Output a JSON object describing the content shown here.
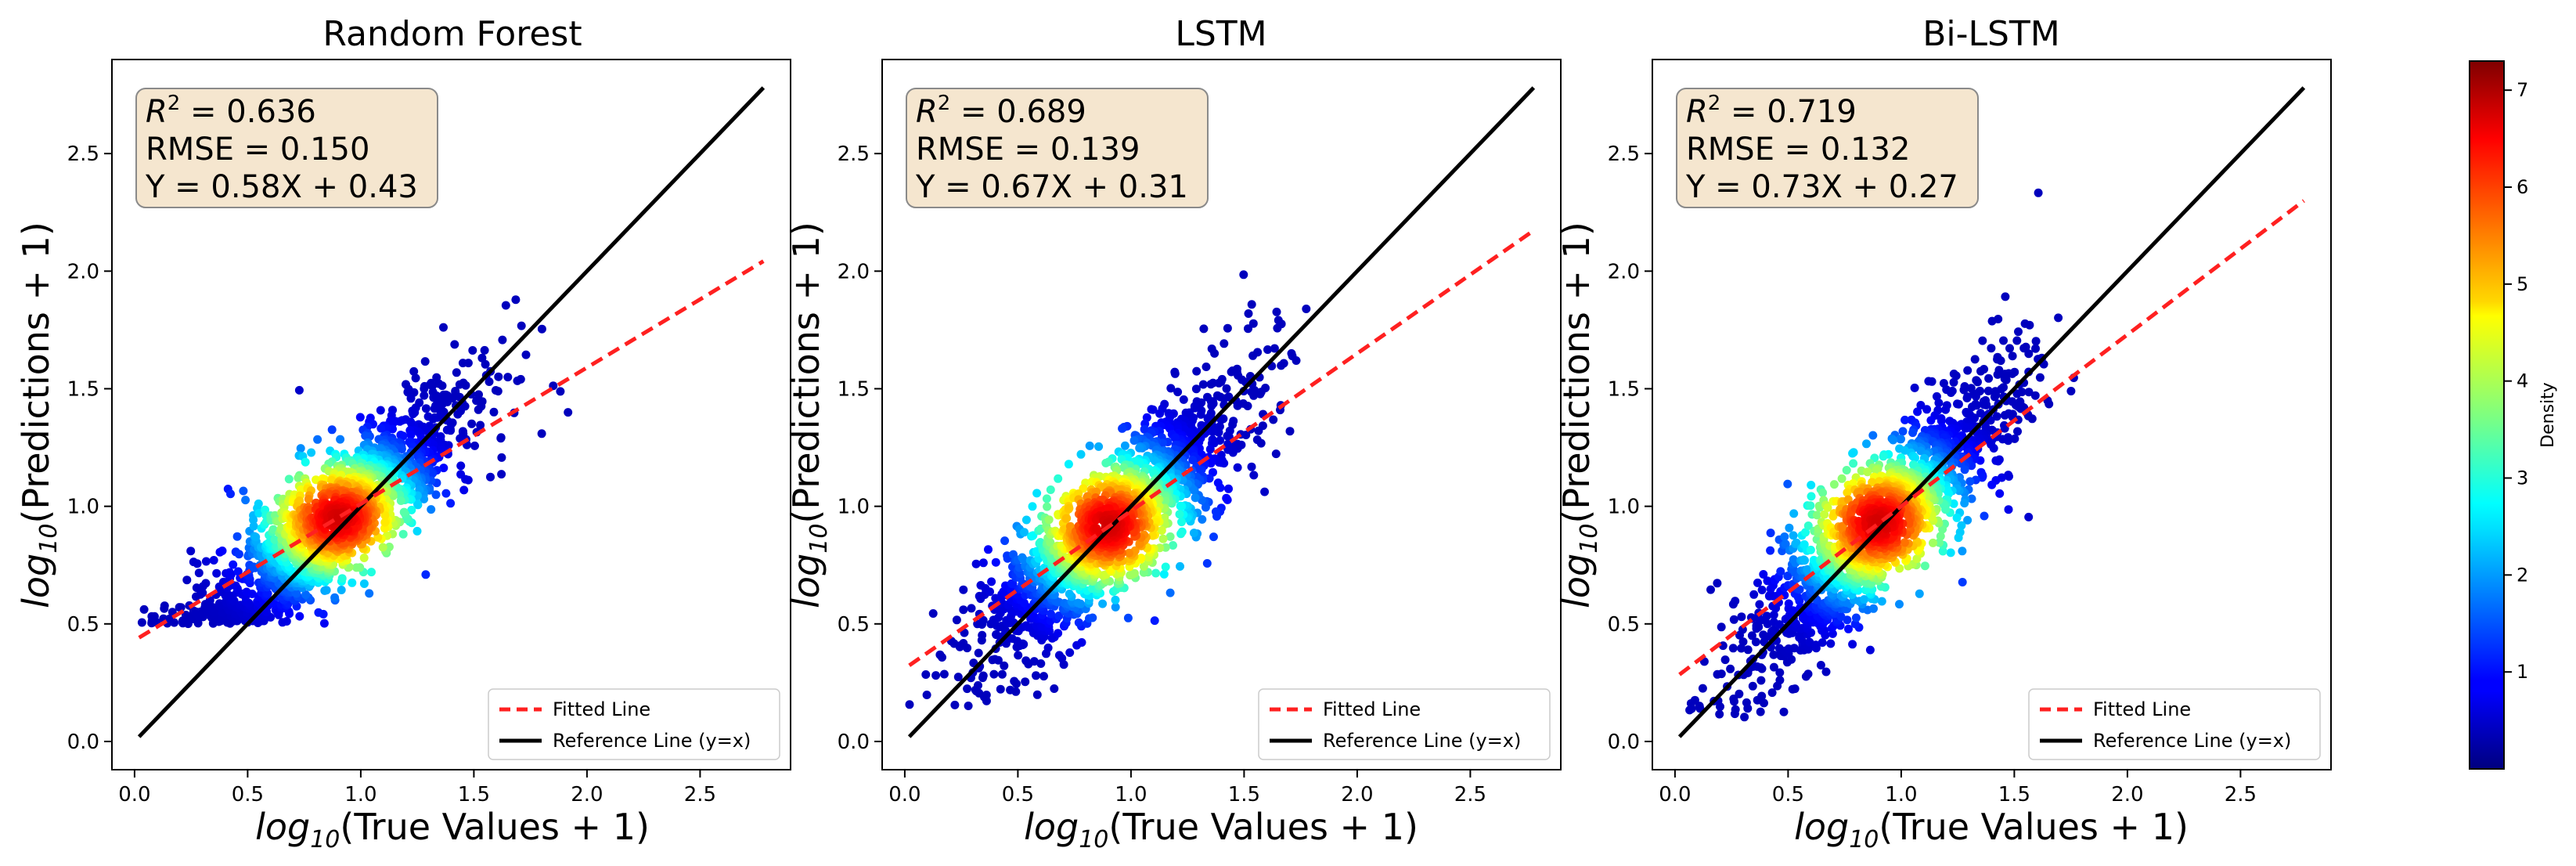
{
  "chart_data": [
    {
      "type": "scatter",
      "title": "Random Forest",
      "xlabel": {
        "pre": "log",
        "sub": "10",
        "post": "(True Values + 1)"
      },
      "ylabel": {
        "pre": "log",
        "sub": "10",
        "post": "(Predictions + 1)"
      },
      "xlim": [
        -0.1,
        2.9
      ],
      "ylim": [
        -0.12,
        2.9
      ],
      "xticks": [
        "0.0",
        "0.5",
        "1.0",
        "1.5",
        "2.0",
        "2.5"
      ],
      "yticks": [
        "0.0",
        "0.5",
        "1.0",
        "1.5",
        "2.0",
        "2.5"
      ],
      "stats": {
        "r2_label": "R",
        "r2_exp": "2",
        "r2_value": " = 0.636",
        "rmse": "RMSE = 0.150",
        "equation": "Y = 0.58X + 0.43"
      },
      "fit": {
        "slope": 0.58,
        "intercept": 0.43,
        "x_range": [
          0.02,
          2.78
        ]
      },
      "reference": {
        "x_range": [
          0.02,
          2.78
        ]
      },
      "cloud": {
        "center": [
          0.9,
          0.95
        ],
        "spread_x": 0.3,
        "spread_y": 0.22,
        "y_floor": 0.5
      }
    },
    {
      "type": "scatter",
      "title": "LSTM",
      "xlabel": {
        "pre": "log",
        "sub": "10",
        "post": "(True Values + 1)"
      },
      "ylabel": {
        "pre": "log",
        "sub": "10",
        "post": "(Predictions + 1)"
      },
      "xlim": [
        -0.1,
        2.9
      ],
      "ylim": [
        -0.12,
        2.9
      ],
      "xticks": [
        "0.0",
        "0.5",
        "1.0",
        "1.5",
        "2.0",
        "2.5"
      ],
      "yticks": [
        "0.0",
        "0.5",
        "1.0",
        "1.5",
        "2.0",
        "2.5"
      ],
      "stats": {
        "r2_label": "R",
        "r2_exp": "2",
        "r2_value": " = 0.689",
        "rmse": "RMSE = 0.139",
        "equation": "Y = 0.67X + 0.31"
      },
      "fit": {
        "slope": 0.67,
        "intercept": 0.31,
        "x_range": [
          0.02,
          2.78
        ]
      },
      "reference": {
        "x_range": [
          0.02,
          2.78
        ]
      },
      "cloud": {
        "center": [
          0.9,
          0.92
        ],
        "spread_x": 0.3,
        "spread_y": 0.24,
        "y_floor": 0.15
      }
    },
    {
      "type": "scatter",
      "title": "Bi-LSTM",
      "xlabel": {
        "pre": "log",
        "sub": "10",
        "post": "(True Values + 1)"
      },
      "ylabel": {
        "pre": "log",
        "sub": "10",
        "post": "(Predictions + 1)"
      },
      "xlim": [
        -0.1,
        2.9
      ],
      "ylim": [
        -0.12,
        2.9
      ],
      "xticks": [
        "0.0",
        "0.5",
        "1.0",
        "1.5",
        "2.0",
        "2.5"
      ],
      "yticks": [
        "0.0",
        "0.5",
        "1.0",
        "1.5",
        "2.0",
        "2.5"
      ],
      "stats": {
        "r2_label": "R",
        "r2_exp": "2",
        "r2_value": " = 0.719",
        "rmse": "RMSE = 0.132",
        "equation": "Y = 0.73X + 0.27"
      },
      "fit": {
        "slope": 0.73,
        "intercept": 0.27,
        "x_range": [
          0.02,
          2.78
        ]
      },
      "reference": {
        "x_range": [
          0.02,
          2.78
        ]
      },
      "cloud": {
        "center": [
          0.9,
          0.93
        ],
        "spread_x": 0.3,
        "spread_y": 0.24,
        "y_floor": 0.1
      }
    }
  ],
  "legend": {
    "fitted": "Fitted Line",
    "reference": "Reference Line (y=x)",
    "placement": "lower-right"
  },
  "colorbar": {
    "label": "Density",
    "range": [
      0,
      7.3
    ],
    "ticks": [
      "1",
      "2",
      "3",
      "4",
      "5",
      "6",
      "7"
    ],
    "colormap": "jet"
  },
  "colors": {
    "fitted_line": "#ff2020",
    "reference_line": "#000000",
    "stats_box_fill": "#f5e6cf",
    "stats_box_edge": "#8a8a8a"
  }
}
